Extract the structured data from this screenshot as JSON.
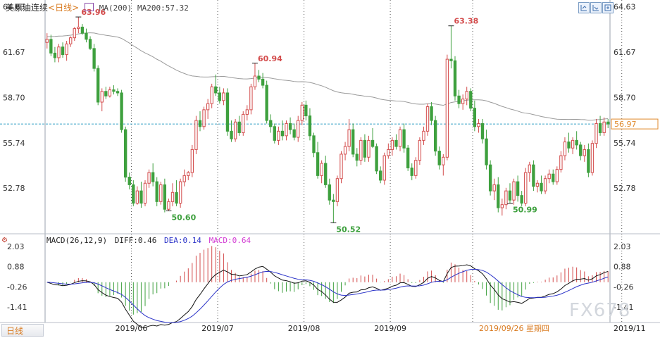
{
  "header": {
    "instrument": "美原油连续",
    "period": "<日线>",
    "ma_label": "MA(200)",
    "ma_value": "MA200:57.32"
  },
  "macd_header": {
    "label": "MACD(26,12,9)",
    "diff": "DIFF:0.46",
    "dea": "DEA:0.14",
    "macd": "MACD:0.64"
  },
  "toolbar": {
    "icons": [
      "zoom-in-icon",
      "zoom-out-icon",
      "expand-icon"
    ]
  },
  "bottom": {
    "tab_label": "日线",
    "cursor_date": "2019/09/26 星期四"
  },
  "watermark": "FX678",
  "colors": {
    "up": "#d34b4b",
    "down": "#3ea03e",
    "ma200": "#9a9a9a",
    "diff_line": "#111111",
    "dea_line": "#2a32c8",
    "current_price_line": "#3aa3c8",
    "period_label": "#d97a1f",
    "annotation_high": "#d34b4b",
    "annotation_low": "#3ea03e"
  },
  "chart_data": [
    {
      "type": "candlestick",
      "title": "美原油连续<日线>",
      "y_ticks": [
        "64.63",
        "61.67",
        "58.70",
        "55.74",
        "52.78"
      ],
      "ylim": [
        49.8,
        64.7
      ],
      "x_ticks": [
        "2019/06",
        "2019/07",
        "2019/08",
        "2019/09",
        "2019/11"
      ],
      "current_price": "56.97",
      "series_name": "MA(200)",
      "ma200_last": 57.32,
      "annotations": [
        {
          "label": "63.96",
          "kind": "high"
        },
        {
          "label": "60.94",
          "kind": "high"
        },
        {
          "label": "63.38",
          "kind": "high"
        },
        {
          "label": "50.60",
          "kind": "low"
        },
        {
          "label": "50.52",
          "kind": "low"
        },
        {
          "label": "50.99",
          "kind": "low"
        }
      ],
      "ohlc": [
        [
          62.3,
          62.9,
          61.9,
          62.5
        ],
        [
          62.5,
          62.8,
          61.4,
          61.6
        ],
        [
          61.6,
          62.0,
          61.0,
          61.3
        ],
        [
          61.3,
          62.2,
          61.0,
          62.0
        ],
        [
          62.0,
          62.3,
          61.3,
          61.5
        ],
        [
          61.5,
          62.4,
          61.1,
          62.2
        ],
        [
          62.2,
          62.7,
          62.0,
          62.6
        ],
        [
          62.6,
          63.3,
          62.4,
          63.2
        ],
        [
          63.2,
          63.96,
          62.9,
          63.3
        ],
        [
          63.3,
          63.5,
          62.8,
          62.9
        ],
        [
          62.9,
          63.2,
          62.3,
          62.5
        ],
        [
          62.5,
          62.7,
          61.8,
          61.9
        ],
        [
          61.9,
          62.2,
          60.4,
          60.6
        ],
        [
          60.6,
          60.8,
          58.2,
          58.4
        ],
        [
          58.4,
          59.3,
          57.8,
          59.1
        ],
        [
          59.1,
          59.4,
          58.6,
          58.8
        ],
        [
          58.8,
          59.4,
          58.7,
          59.2
        ],
        [
          59.2,
          59.5,
          58.9,
          59.1
        ],
        [
          59.1,
          59.3,
          58.8,
          59.0
        ],
        [
          59.0,
          59.2,
          56.4,
          56.6
        ],
        [
          56.6,
          56.8,
          53.2,
          53.5
        ],
        [
          53.5,
          53.8,
          52.7,
          53.0
        ],
        [
          53.0,
          53.3,
          51.6,
          51.8
        ],
        [
          51.8,
          52.9,
          51.7,
          52.6
        ],
        [
          52.6,
          53.2,
          51.5,
          51.8
        ],
        [
          51.8,
          53.3,
          51.6,
          53.1
        ],
        [
          53.1,
          54.0,
          52.8,
          53.8
        ],
        [
          53.8,
          54.4,
          52.9,
          53.2
        ],
        [
          53.2,
          53.5,
          51.6,
          51.9
        ],
        [
          51.9,
          53.2,
          51.7,
          53.0
        ],
        [
          53.0,
          53.4,
          51.2,
          51.4
        ],
        [
          51.4,
          52.1,
          51.3,
          51.9
        ],
        [
          51.9,
          53.1,
          51.6,
          52.5
        ],
        [
          52.5,
          53.3,
          51.6,
          51.8
        ],
        [
          51.8,
          53.4,
          51.5,
          53.2
        ],
        [
          53.2,
          54.0,
          52.9,
          53.6
        ],
        [
          53.6,
          53.9,
          53.3,
          53.8
        ],
        [
          53.8,
          55.6,
          53.5,
          55.3
        ],
        [
          55.3,
          57.5,
          55.0,
          57.2
        ],
        [
          57.2,
          57.8,
          56.5,
          56.8
        ],
        [
          56.8,
          58.1,
          56.6,
          57.9
        ],
        [
          57.9,
          58.6,
          57.3,
          58.3
        ],
        [
          58.3,
          59.6,
          58.0,
          59.4
        ],
        [
          59.4,
          60.2,
          58.8,
          59.0
        ],
        [
          59.0,
          59.4,
          58.3,
          58.5
        ],
        [
          58.5,
          59.3,
          58.2,
          59.0
        ],
        [
          59.0,
          59.3,
          56.2,
          56.5
        ],
        [
          56.5,
          57.2,
          55.8,
          56.0
        ],
        [
          56.0,
          57.3,
          55.8,
          57.1
        ],
        [
          57.1,
          57.5,
          56.2,
          56.4
        ],
        [
          56.4,
          57.8,
          56.2,
          57.6
        ],
        [
          57.6,
          58.2,
          57.2,
          57.9
        ],
        [
          57.9,
          59.6,
          57.6,
          59.4
        ],
        [
          59.4,
          60.94,
          59.2,
          60.1
        ],
        [
          60.1,
          60.5,
          59.7,
          59.9
        ],
        [
          59.9,
          60.3,
          59.3,
          59.5
        ],
        [
          59.5,
          59.8,
          57.0,
          57.2
        ],
        [
          57.2,
          57.6,
          56.4,
          56.8
        ],
        [
          56.8,
          57.0,
          55.7,
          55.9
        ],
        [
          55.9,
          56.8,
          55.6,
          56.5
        ],
        [
          56.5,
          57.2,
          55.9,
          56.2
        ],
        [
          56.2,
          57.2,
          55.9,
          57.0
        ],
        [
          57.0,
          57.4,
          56.3,
          56.6
        ],
        [
          56.6,
          57.0,
          55.9,
          56.1
        ],
        [
          56.1,
          57.5,
          55.8,
          57.2
        ],
        [
          57.2,
          58.4,
          56.9,
          58.2
        ],
        [
          58.2,
          58.5,
          57.2,
          57.5
        ],
        [
          57.5,
          58.0,
          55.9,
          56.2
        ],
        [
          56.2,
          56.4,
          54.8,
          55.1
        ],
        [
          55.1,
          55.8,
          53.4,
          53.6
        ],
        [
          53.6,
          54.6,
          53.1,
          54.4
        ],
        [
          54.4,
          54.9,
          52.8,
          53.0
        ],
        [
          53.0,
          53.4,
          51.7,
          52.0
        ],
        [
          52.0,
          52.4,
          50.52,
          51.9
        ],
        [
          51.9,
          53.6,
          51.6,
          53.4
        ],
        [
          53.4,
          55.2,
          53.1,
          55.0
        ],
        [
          55.0,
          55.8,
          54.6,
          55.5
        ],
        [
          55.5,
          57.3,
          55.2,
          56.6
        ],
        [
          56.6,
          57.0,
          54.8,
          55.0
        ],
        [
          55.0,
          55.4,
          54.2,
          54.6
        ],
        [
          54.6,
          56.1,
          54.3,
          55.9
        ],
        [
          55.9,
          56.3,
          54.5,
          54.8
        ],
        [
          54.8,
          56.2,
          54.5,
          55.9
        ],
        [
          55.9,
          56.7,
          55.4,
          55.5
        ],
        [
          55.5,
          55.7,
          53.7,
          53.9
        ],
        [
          53.9,
          54.2,
          53.1,
          53.3
        ],
        [
          53.3,
          55.1,
          53.0,
          54.9
        ],
        [
          54.9,
          55.7,
          54.7,
          55.3
        ],
        [
          55.3,
          56.1,
          54.9,
          55.9
        ],
        [
          55.9,
          56.3,
          55.3,
          55.5
        ],
        [
          55.5,
          56.8,
          55.2,
          56.6
        ],
        [
          56.6,
          57.0,
          55.1,
          55.4
        ],
        [
          55.4,
          55.6,
          53.9,
          54.1
        ],
        [
          54.1,
          54.4,
          53.3,
          53.6
        ],
        [
          53.6,
          54.8,
          53.4,
          54.6
        ],
        [
          54.6,
          56.1,
          54.3,
          55.9
        ],
        [
          55.9,
          56.8,
          55.6,
          56.5
        ],
        [
          56.5,
          58.3,
          56.2,
          58.1
        ],
        [
          58.1,
          58.4,
          56.9,
          57.2
        ],
        [
          57.2,
          57.5,
          54.9,
          55.2
        ],
        [
          55.2,
          55.5,
          54.0,
          54.3
        ],
        [
          54.3,
          55.0,
          53.6,
          54.8
        ],
        [
          54.8,
          61.5,
          54.6,
          61.2
        ],
        [
          61.2,
          63.38,
          60.6,
          61.1
        ],
        [
          61.1,
          61.4,
          58.5,
          58.8
        ],
        [
          58.8,
          59.2,
          58.0,
          58.3
        ],
        [
          58.3,
          58.9,
          57.9,
          58.6
        ],
        [
          58.6,
          59.4,
          58.2,
          59.1
        ],
        [
          59.1,
          59.3,
          57.8,
          58.0
        ],
        [
          58.0,
          58.5,
          56.5,
          56.8
        ],
        [
          56.8,
          57.3,
          56.4,
          57.0
        ],
        [
          57.0,
          57.3,
          55.7,
          56.0
        ],
        [
          56.0,
          56.6,
          54.0,
          54.3
        ],
        [
          54.3,
          54.6,
          52.3,
          52.6
        ],
        [
          52.6,
          53.4,
          52.0,
          53.0
        ],
        [
          53.0,
          53.5,
          51.2,
          51.5
        ],
        [
          51.5,
          52.1,
          50.99,
          51.7
        ],
        [
          51.7,
          52.8,
          51.4,
          52.6
        ],
        [
          52.6,
          53.1,
          51.8,
          52.0
        ],
        [
          52.0,
          53.4,
          51.7,
          53.2
        ],
        [
          53.2,
          53.6,
          51.9,
          52.3
        ],
        [
          52.3,
          52.6,
          51.6,
          51.8
        ],
        [
          51.8,
          54.1,
          51.6,
          53.8
        ],
        [
          53.8,
          54.5,
          53.2,
          54.3
        ],
        [
          54.3,
          54.6,
          52.6,
          52.9
        ],
        [
          52.9,
          53.3,
          52.5,
          53.1
        ],
        [
          53.1,
          53.6,
          52.4,
          52.6
        ],
        [
          52.6,
          53.6,
          52.4,
          53.4
        ],
        [
          53.4,
          54.0,
          53.1,
          53.7
        ],
        [
          53.7,
          54.0,
          53.0,
          53.2
        ],
        [
          53.2,
          54.2,
          53.0,
          54.0
        ],
        [
          54.0,
          55.2,
          53.8,
          54.9
        ],
        [
          54.9,
          56.1,
          54.6,
          55.8
        ],
        [
          55.8,
          56.4,
          55.1,
          55.4
        ],
        [
          55.4,
          56.1,
          55.0,
          55.9
        ],
        [
          55.9,
          56.5,
          55.3,
          55.6
        ],
        [
          55.6,
          55.8,
          54.6,
          54.9
        ],
        [
          54.9,
          55.6,
          54.5,
          55.3
        ],
        [
          55.3,
          55.7,
          53.5,
          53.8
        ],
        [
          53.8,
          55.9,
          53.6,
          55.7
        ],
        [
          55.7,
          57.3,
          55.4,
          57.0
        ],
        [
          57.0,
          57.5,
          56.2,
          56.4
        ],
        [
          56.4,
          57.4,
          56.2,
          57.1
        ],
        [
          57.1,
          57.3,
          56.7,
          56.97
        ]
      ]
    },
    {
      "type": "macd",
      "title": "MACD(26,12,9)",
      "y_ticks": [
        "2.03",
        "0.88",
        "-0.26",
        "-1.41"
      ],
      "ylim": [
        -2.2,
        2.3
      ],
      "diff_last": 0.46,
      "dea_last": 0.14,
      "macd_last": 0.64
    }
  ]
}
